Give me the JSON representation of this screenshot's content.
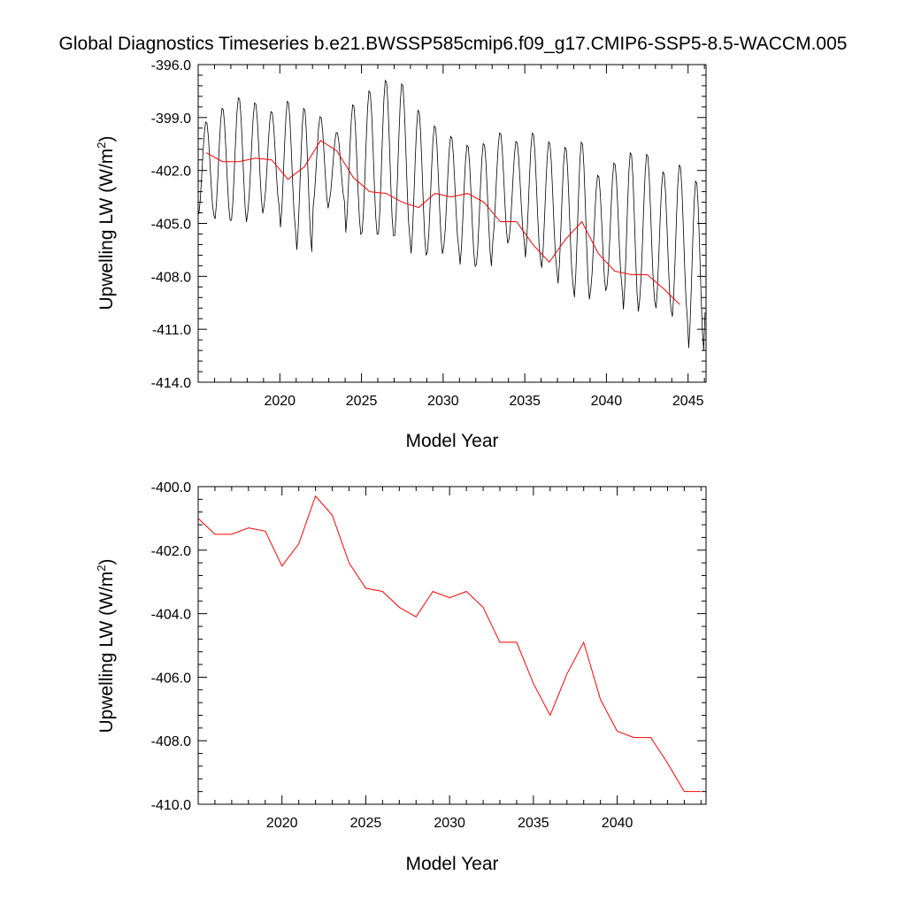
{
  "figure": {
    "title": "Global Diagnostics Timeseries b.e21.BWSSP585cmip6.f09_g17.CMIP6-SSP5-8.5-WACCM.005"
  },
  "colors": {
    "monthly": "#000000",
    "annual": "#ff0000"
  },
  "chart_data": [
    {
      "type": "line",
      "panel": "top",
      "ylabel_main": "Upwelling LW (W/m",
      "ylabel_sup": "2",
      "ylabel_end": ")",
      "xlabel": "Model Year",
      "xlim": [
        2015,
        2046.1
      ],
      "ylim": [
        -414.0,
        -396.0
      ],
      "xticks": [
        2020,
        2025,
        2030,
        2035,
        2040,
        2045
      ],
      "xtick_labels": [
        "2020",
        "2025",
        "2030",
        "2035",
        "2040",
        "2045"
      ],
      "yticks": [
        -396.0,
        -399.0,
        -402.0,
        -405.0,
        -408.0,
        -411.0,
        -414.0
      ],
      "ytick_labels": [
        "-396.0",
        "-399.0",
        "-402.0",
        "-405.0",
        "-408.0",
        "-411.0",
        "-414.0"
      ],
      "series": [
        {
          "name": "monthly",
          "color": "#000000",
          "kind": "monthly_cycle",
          "x_start": 2015.04,
          "x_end": 2046.0,
          "seasonal_amplitude": 2.2,
          "peaks": [
            -399.2,
            -398.4,
            -397.8,
            -398.1,
            -398.6,
            -398.0,
            -398.4,
            -398.9,
            -399.8,
            -398.2,
            -397.4,
            -396.8,
            -397.0,
            -398.5,
            -399.4,
            -400.0,
            -400.5,
            -400.4,
            -399.8,
            -400.3,
            -399.8,
            -400.3,
            -400.6,
            -400.3,
            -402.2,
            -401.5,
            -400.9,
            -401.0,
            -402.0,
            -401.6,
            -402.5,
            -403.7
          ],
          "troughs": [
            -404.6,
            -404.9,
            -405.0,
            -404.5,
            -404.1,
            -405.4,
            -406.7,
            -404.2,
            -403.8,
            -405.7,
            -405.7,
            -405.8,
            -405.9,
            -406.9,
            -406.8,
            -406.5,
            -407.5,
            -407.5,
            -406.2,
            -406.0,
            -407.1,
            -407.7,
            -408.6,
            -409.4,
            -408.9,
            -408.7,
            -410.1,
            -409.5,
            -410.0,
            -410.5,
            -412.3,
            -410.2
          ]
        },
        {
          "name": "annual",
          "color": "#ff0000",
          "x": [
            2015.5,
            2016.5,
            2017.5,
            2018.5,
            2019.5,
            2020.5,
            2021.5,
            2022.5,
            2023.5,
            2024.5,
            2025.5,
            2026.5,
            2027.5,
            2028.5,
            2029.5,
            2030.5,
            2031.5,
            2032.5,
            2033.5,
            2034.5,
            2035.5,
            2036.5,
            2037.5,
            2038.5,
            2039.5,
            2040.5,
            2041.5,
            2042.5,
            2043.5,
            2044.5
          ],
          "values": [
            -401.0,
            -401.5,
            -401.5,
            -401.3,
            -401.4,
            -402.5,
            -401.8,
            -400.3,
            -400.9,
            -402.4,
            -403.2,
            -403.3,
            -403.8,
            -404.1,
            -403.3,
            -403.5,
            -403.3,
            -403.8,
            -404.9,
            -404.9,
            -406.2,
            -407.2,
            -405.9,
            -404.9,
            -406.7,
            -407.7,
            -407.9,
            -407.9,
            -408.7,
            -409.6
          ]
        }
      ]
    },
    {
      "type": "line",
      "panel": "bottom",
      "ylabel_main": "Upwelling LW (W/m",
      "ylabel_sup": "2",
      "ylabel_end": ")",
      "xlabel": "Model Year",
      "xlim": [
        2015,
        2045.3
      ],
      "ylim": [
        -410.0,
        -400.0
      ],
      "xticks": [
        2020,
        2025,
        2030,
        2035,
        2040
      ],
      "xtick_labels": [
        "2020",
        "2025",
        "2030",
        "2035",
        "2040"
      ],
      "yticks": [
        -400.0,
        -402.0,
        -404.0,
        -406.0,
        -408.0,
        -410.0
      ],
      "ytick_labels": [
        "-400.0",
        "-402.0",
        "-404.0",
        "-406.0",
        "-408.0",
        "-410.0"
      ],
      "series": [
        {
          "name": "annual",
          "color": "#ff0000",
          "x": [
            2015.0,
            2016.0,
            2017.0,
            2018.0,
            2019.0,
            2020.0,
            2021.0,
            2022.0,
            2023.0,
            2024.0,
            2025.0,
            2026.0,
            2027.0,
            2028.0,
            2029.0,
            2030.0,
            2031.0,
            2032.0,
            2033.0,
            2034.0,
            2035.0,
            2036.0,
            2037.0,
            2038.0,
            2039.0,
            2040.0,
            2041.0,
            2042.0,
            2043.0,
            2044.0,
            2045.0
          ],
          "values": [
            -401.0,
            -401.5,
            -401.5,
            -401.3,
            -401.4,
            -402.5,
            -401.8,
            -400.3,
            -400.9,
            -402.4,
            -403.2,
            -403.3,
            -403.8,
            -404.1,
            -403.3,
            -403.5,
            -403.3,
            -403.8,
            -404.9,
            -404.9,
            -406.2,
            -407.2,
            -405.9,
            -404.9,
            -406.7,
            -407.7,
            -407.9,
            -407.9,
            -408.7,
            -409.6,
            -409.6
          ]
        }
      ]
    }
  ]
}
